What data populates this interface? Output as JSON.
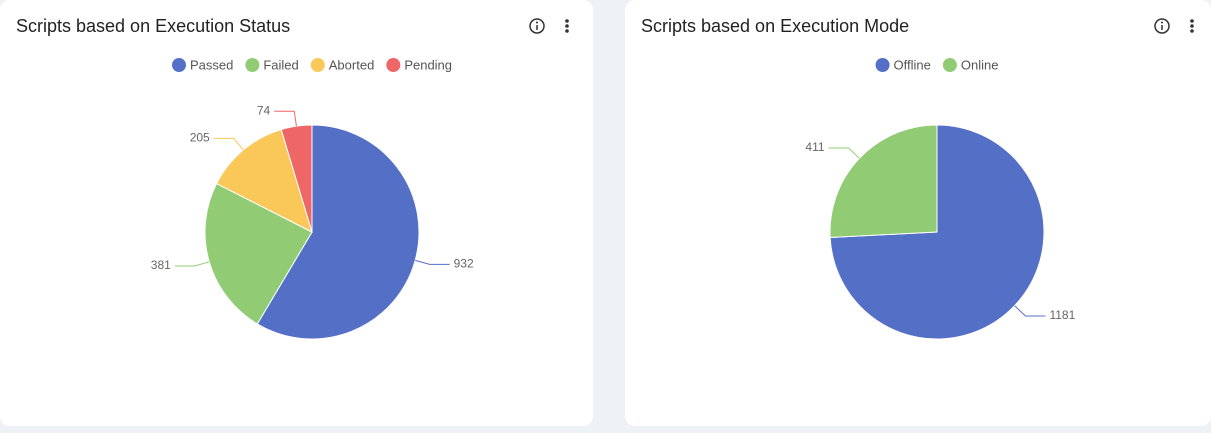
{
  "chart_data": [
    {
      "type": "pie",
      "title": "Scripts based on Execution Status",
      "categories": [
        "Passed",
        "Failed",
        "Aborted",
        "Pending"
      ],
      "values": [
        932,
        381,
        205,
        74
      ],
      "colors": [
        "#5470c6",
        "#91cc75",
        "#fac858",
        "#ee6666"
      ],
      "legend": "top"
    },
    {
      "type": "pie",
      "title": "Scripts based on Execution Mode",
      "categories": [
        "Offline",
        "Online"
      ],
      "values": [
        1181,
        411
      ],
      "colors": [
        "#5470c6",
        "#91cc75"
      ],
      "legend": "top"
    }
  ]
}
